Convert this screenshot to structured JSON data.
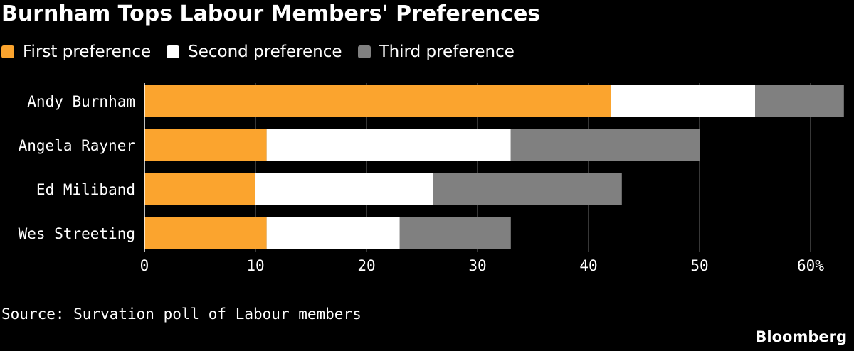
{
  "title": "Burnham Tops Labour Members' Preferences",
  "source": "Source: Survation poll of Labour members",
  "brand": "Bloomberg",
  "colors": {
    "first": "#FBA42E",
    "second": "#FFFFFF",
    "third": "#808080",
    "grid": "#6E6E6E",
    "background": "#000000",
    "text": "#FFFFFF"
  },
  "chart_data": {
    "type": "bar",
    "orientation": "horizontal",
    "stacked": true,
    "title": "Burnham Tops Labour Members' Preferences",
    "xlabel": "",
    "ylabel": "",
    "xlim": [
      0,
      63
    ],
    "xticks": [
      0,
      10,
      20,
      30,
      40,
      50,
      60
    ],
    "xtick_labels": [
      "0",
      "10",
      "20",
      "30",
      "40",
      "50",
      "60%"
    ],
    "grid": "vertical",
    "legend_position": "top-left",
    "categories": [
      "Andy Burnham",
      "Angela Rayner",
      "Ed Miliband",
      "Wes Streeting"
    ],
    "series": [
      {
        "name": "First preference",
        "color": "#FBA42E",
        "values": [
          42,
          11,
          10,
          11
        ]
      },
      {
        "name": "Second preference",
        "color": "#FFFFFF",
        "values": [
          13,
          22,
          16,
          12
        ]
      },
      {
        "name": "Third preference",
        "color": "#808080",
        "values": [
          8,
          17,
          17,
          10
        ]
      }
    ]
  }
}
